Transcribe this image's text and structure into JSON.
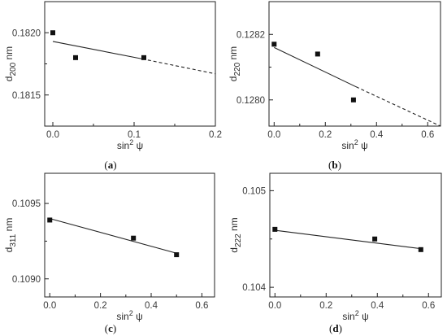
{
  "chart_data": [
    {
      "type": "scatter",
      "panel_label": "(a)",
      "xlabel": "sin",
      "xlabel_sup": "2",
      "xlabel_tail": " ψ",
      "ylabel": "d",
      "ylabel_sub": "200",
      "ylabel_tail": " nm",
      "xlim": [
        -0.01,
        0.2
      ],
      "ylim": [
        0.18125,
        0.18225
      ],
      "xticks": [
        0.0,
        0.1,
        0.2
      ],
      "xtick_labels": [
        "0.0",
        "0.1",
        "0.2"
      ],
      "yticks": [
        0.1815,
        0.182
      ],
      "ytick_labels": [
        "0.1815",
        "0.1820"
      ],
      "points": [
        [
          0.0,
          0.182
        ],
        [
          0.028,
          0.1818
        ],
        [
          0.112,
          0.1818
        ]
      ],
      "fit_solid": [
        [
          0.0,
          0.18193
        ],
        [
          0.11,
          0.18179
        ]
      ],
      "fit_dashed": [
        [
          0.11,
          0.18179
        ],
        [
          0.2,
          0.18167
        ]
      ]
    },
    {
      "type": "scatter",
      "panel_label": "(b)",
      "xlabel": "sin",
      "xlabel_sup": "2",
      "xlabel_tail": " ψ",
      "ylabel": "d",
      "ylabel_sub": "220",
      "ylabel_tail": " nm",
      "xlim": [
        -0.02,
        0.65
      ],
      "ylim": [
        0.12792,
        0.1283
      ],
      "xticks": [
        0.0,
        0.2,
        0.4,
        0.6
      ],
      "xtick_labels": [
        "0.0",
        "0.2",
        "0.4",
        "0.6"
      ],
      "yticks": [
        0.128,
        0.1282
      ],
      "ytick_labels": [
        "0.1280",
        "0.1282"
      ],
      "points": [
        [
          0.0,
          0.12817
        ],
        [
          0.17,
          0.12814
        ],
        [
          0.31,
          0.128
        ]
      ],
      "fit_solid": [
        [
          0.0,
          0.12816
        ],
        [
          0.32,
          0.12804
        ]
      ],
      "fit_dashed": [
        [
          0.32,
          0.12804
        ],
        [
          0.65,
          0.12792
        ]
      ]
    },
    {
      "type": "scatter",
      "panel_label": "(c)",
      "xlabel": "sin",
      "xlabel_sup": "2",
      "xlabel_tail": " ψ",
      "ylabel": "d",
      "ylabel_sub": "311",
      "ylabel_tail": " nm",
      "xlim": [
        -0.02,
        0.65
      ],
      "ylim": [
        0.10888,
        0.1097
      ],
      "xticks": [
        0.0,
        0.2,
        0.4,
        0.6
      ],
      "xtick_labels": [
        "0.0",
        "0.2",
        "0.4",
        "0.6"
      ],
      "yticks": [
        0.109,
        0.1095
      ],
      "ytick_labels": [
        "0.1090",
        "0.1095"
      ],
      "points": [
        [
          0.0,
          0.10939
        ],
        [
          0.33,
          0.10927
        ],
        [
          0.5,
          0.10916
        ]
      ],
      "fit_solid": [
        [
          0.0,
          0.1094
        ],
        [
          0.5,
          0.10917
        ]
      ],
      "fit_dashed": []
    },
    {
      "type": "scatter",
      "panel_label": "(d)",
      "xlabel": "sin",
      "xlabel_sup": "2",
      "xlabel_tail": " ψ",
      "ylabel": "d",
      "ylabel_sub": "222",
      "ylabel_tail": " nm",
      "xlim": [
        -0.02,
        0.65
      ],
      "ylim": [
        0.1039,
        0.10518
      ],
      "xticks": [
        0.0,
        0.2,
        0.4,
        0.6
      ],
      "xtick_labels": [
        "0.0",
        "0.2",
        "0.4",
        "0.6"
      ],
      "yticks": [
        0.104,
        0.105
      ],
      "ytick_labels": [
        "0.104",
        "0.105"
      ],
      "points": [
        [
          0.0,
          0.1046
        ],
        [
          0.39,
          0.1045
        ],
        [
          0.57,
          0.10439
        ]
      ],
      "fit_solid": [
        [
          0.0,
          0.10459
        ],
        [
          0.57,
          0.1044
        ]
      ],
      "fit_dashed": []
    }
  ]
}
